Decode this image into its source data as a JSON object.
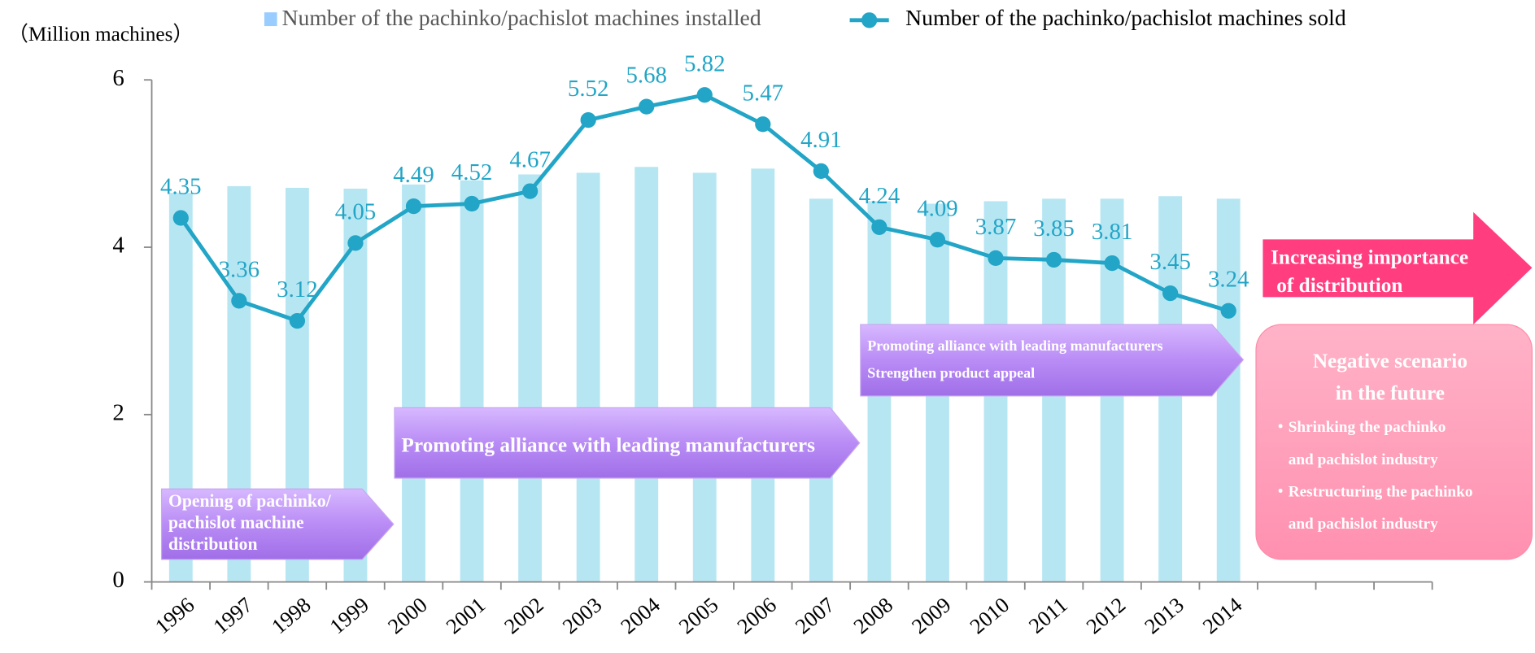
{
  "chart_data": {
    "type": "bar",
    "y_label": "（Million machines）",
    "categories": [
      "1996",
      "1997",
      "1998",
      "1999",
      "2000",
      "2001",
      "2002",
      "2003",
      "2004",
      "2005",
      "2006",
      "2007",
      "2008",
      "2009",
      "2010",
      "2011",
      "2012",
      "2013",
      "2014",
      null,
      null,
      null
    ],
    "series": [
      {
        "name": "Number of the pachinko/pachislot machines installed",
        "type": "bar",
        "color": "#b7e6f3",
        "legend_color": "#99ccff",
        "values": [
          4.65,
          4.73,
          4.71,
          4.7,
          4.75,
          4.8,
          4.87,
          4.89,
          4.96,
          4.89,
          4.94,
          4.58,
          4.55,
          4.52,
          4.55,
          4.58,
          4.58,
          4.61,
          4.58,
          null,
          null,
          null
        ]
      },
      {
        "name": "Number of the pachinko/pachislot machines sold",
        "type": "line",
        "color": "#22a5c6",
        "values": [
          4.35,
          3.36,
          3.12,
          4.05,
          4.49,
          4.52,
          4.67,
          5.52,
          5.68,
          5.82,
          5.47,
          4.91,
          4.24,
          4.09,
          3.87,
          3.85,
          3.81,
          3.45,
          3.24,
          null,
          null,
          null
        ]
      }
    ],
    "ylim": [
      0,
      6
    ],
    "yticks": [
      0,
      2,
      4,
      6
    ],
    "annotations": [
      [
        "Opening of pachinko/",
        "pachislot machine",
        "distribution"
      ],
      [
        "Promoting alliance with leading manufacturers"
      ],
      [
        "Promoting alliance with leading manufacturers",
        "Strengthen product appeal"
      ],
      [
        "Increasing importance",
        "of distribution"
      ],
      [
        "Negative scenario",
        "in the future",
        "・Shrinking the pachinko",
        "and pachislot industry",
        "・Restructuring the pachinko",
        "and pachislot industry"
      ]
    ]
  }
}
